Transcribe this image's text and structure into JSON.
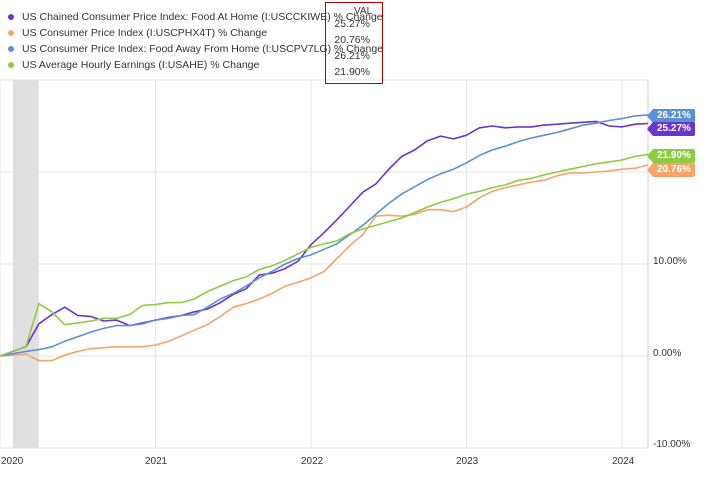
{
  "legend": {
    "header": "VAL",
    "items": [
      {
        "label": "US Chained Consumer Price Index: Food At Home (I:USCCKIWE) % Change",
        "value": "25.27%",
        "color": "#6a35c8"
      },
      {
        "label": "US Consumer Price Index (I:USCPHX4T) % Change",
        "value": "20.76%",
        "color": "#f7a46b"
      },
      {
        "label": "US Consumer Price Index: Food Away From Home (I:USCPV7LG) % Change",
        "value": "26.21%",
        "color": "#5b8fd6"
      },
      {
        "label": "US Average Hourly Earnings (I:USAHE) % Change",
        "value": "21.90%",
        "color": "#8ccc45"
      }
    ]
  },
  "chart_data": {
    "type": "line",
    "x_ticks": [
      "2020",
      "2021",
      "2022",
      "2023",
      "2024"
    ],
    "y_ticks": [
      "10.00%",
      "0.00%",
      "-10.00%"
    ],
    "ylim": [
      -10,
      30
    ],
    "grid": true,
    "highlight_band": [
      "2020-02",
      "2020-04"
    ],
    "end_labels": [
      "26.21%",
      "25.27%",
      "21.90%",
      "20.76%"
    ],
    "series": [
      {
        "name": "US Chained Consumer Price Index: Food At Home (I:USCCKIWE) % Change",
        "color": "#6a35c8",
        "x": [
          "2020-01",
          "2020-03",
          "2020-04",
          "2020-05",
          "2020-06",
          "2020-07",
          "2020-08",
          "2020-09",
          "2020-10",
          "2020-11",
          "2020-12",
          "2021-01",
          "2021-02",
          "2021-03",
          "2021-04",
          "2021-05",
          "2021-06",
          "2021-07",
          "2021-08",
          "2021-09",
          "2021-10",
          "2021-11",
          "2021-12",
          "2022-01",
          "2022-02",
          "2022-03",
          "2022-04",
          "2022-05",
          "2022-06",
          "2022-07",
          "2022-08",
          "2022-09",
          "2022-10",
          "2022-11",
          "2022-12",
          "2023-01",
          "2023-02",
          "2023-03",
          "2023-04",
          "2023-05",
          "2023-06",
          "2023-07",
          "2023-08",
          "2023-09",
          "2023-10",
          "2023-11",
          "2023-12",
          "2024-01",
          "2024-02",
          "2024-03"
        ],
        "y": [
          0.0,
          1.0,
          3.5,
          4.5,
          5.3,
          4.4,
          4.3,
          3.8,
          3.9,
          3.3,
          3.6,
          3.9,
          4.2,
          4.4,
          4.8,
          5.1,
          5.8,
          6.7,
          7.3,
          8.8,
          9.0,
          9.5,
          10.3,
          12.1,
          13.4,
          14.8,
          16.3,
          17.8,
          18.7,
          20.3,
          21.7,
          22.4,
          23.4,
          23.9,
          23.6,
          24.0,
          24.8,
          25.0,
          24.8,
          24.9,
          24.9,
          25.1,
          25.2,
          25.3,
          25.4,
          25.5,
          25.0,
          24.9,
          25.2,
          25.27
        ]
      },
      {
        "name": "US Consumer Price Index (I:USCPHX4T) % Change",
        "color": "#f7a46b",
        "x": [
          "2020-01",
          "2020-03",
          "2020-04",
          "2020-05",
          "2020-06",
          "2020-07",
          "2020-08",
          "2020-09",
          "2020-10",
          "2020-11",
          "2020-12",
          "2021-01",
          "2021-02",
          "2021-03",
          "2021-04",
          "2021-05",
          "2021-06",
          "2021-07",
          "2021-08",
          "2021-09",
          "2021-10",
          "2021-11",
          "2021-12",
          "2022-01",
          "2022-02",
          "2022-03",
          "2022-04",
          "2022-05",
          "2022-06",
          "2022-07",
          "2022-08",
          "2022-09",
          "2022-10",
          "2022-11",
          "2022-12",
          "2023-01",
          "2023-02",
          "2023-03",
          "2023-04",
          "2023-05",
          "2023-06",
          "2023-07",
          "2023-08",
          "2023-09",
          "2023-10",
          "2023-11",
          "2023-12",
          "2024-01",
          "2024-02",
          "2024-03"
        ],
        "y": [
          0.0,
          0.2,
          -0.5,
          -0.5,
          0.1,
          0.5,
          0.8,
          0.9,
          1.0,
          1.0,
          1.0,
          1.2,
          1.6,
          2.2,
          2.8,
          3.4,
          4.3,
          5.3,
          5.7,
          6.2,
          6.8,
          7.6,
          8.0,
          8.5,
          9.2,
          10.6,
          12.0,
          13.2,
          15.2,
          15.3,
          15.2,
          15.4,
          15.9,
          15.9,
          15.7,
          16.2,
          17.2,
          17.9,
          18.3,
          18.6,
          18.9,
          19.1,
          19.6,
          19.9,
          19.9,
          20.0,
          20.1,
          20.3,
          20.4,
          20.76
        ]
      },
      {
        "name": "US Consumer Price Index: Food Away From Home (I:USCPV7LG) % Change",
        "color": "#5b8fd6",
        "x": [
          "2020-01",
          "2020-03",
          "2020-04",
          "2020-05",
          "2020-06",
          "2020-07",
          "2020-08",
          "2020-09",
          "2020-10",
          "2020-11",
          "2020-12",
          "2021-01",
          "2021-02",
          "2021-03",
          "2021-04",
          "2021-05",
          "2021-06",
          "2021-07",
          "2021-08",
          "2021-09",
          "2021-10",
          "2021-11",
          "2021-12",
          "2022-01",
          "2022-02",
          "2022-03",
          "2022-04",
          "2022-05",
          "2022-06",
          "2022-07",
          "2022-08",
          "2022-09",
          "2022-10",
          "2022-11",
          "2022-12",
          "2023-01",
          "2023-02",
          "2023-03",
          "2023-04",
          "2023-05",
          "2023-06",
          "2023-07",
          "2023-08",
          "2023-09",
          "2023-10",
          "2023-11",
          "2023-12",
          "2024-01",
          "2024-02",
          "2024-03"
        ],
        "y": [
          0.0,
          0.5,
          0.7,
          1.0,
          1.6,
          2.1,
          2.6,
          3.0,
          3.3,
          3.3,
          3.5,
          3.9,
          4.1,
          4.4,
          4.5,
          5.3,
          6.2,
          6.8,
          7.6,
          8.5,
          9.2,
          10.0,
          10.6,
          11.0,
          11.6,
          12.2,
          13.2,
          14.2,
          15.4,
          16.6,
          17.6,
          18.4,
          19.2,
          19.8,
          20.3,
          21.0,
          21.8,
          22.4,
          22.8,
          23.3,
          23.7,
          24.0,
          24.3,
          24.7,
          25.1,
          25.3,
          25.6,
          25.8,
          26.1,
          26.21
        ]
      },
      {
        "name": "US Average Hourly Earnings (I:USAHE) % Change",
        "color": "#8ccc45",
        "x": [
          "2020-01",
          "2020-03",
          "2020-04",
          "2020-05",
          "2020-06",
          "2020-07",
          "2020-08",
          "2020-09",
          "2020-10",
          "2020-11",
          "2020-12",
          "2021-01",
          "2021-02",
          "2021-03",
          "2021-04",
          "2021-05",
          "2021-06",
          "2021-07",
          "2021-08",
          "2021-09",
          "2021-10",
          "2021-11",
          "2021-12",
          "2022-01",
          "2022-02",
          "2022-03",
          "2022-04",
          "2022-05",
          "2022-06",
          "2022-07",
          "2022-08",
          "2022-09",
          "2022-10",
          "2022-11",
          "2022-12",
          "2023-01",
          "2023-02",
          "2023-03",
          "2023-04",
          "2023-05",
          "2023-06",
          "2023-07",
          "2023-08",
          "2023-09",
          "2023-10",
          "2023-11",
          "2023-12",
          "2024-01",
          "2024-02",
          "2024-03"
        ],
        "y": [
          0.0,
          1.0,
          5.7,
          4.8,
          3.4,
          3.6,
          3.8,
          4.1,
          4.1,
          4.5,
          5.5,
          5.6,
          5.8,
          5.8,
          6.2,
          7.0,
          7.6,
          8.2,
          8.6,
          9.4,
          9.8,
          10.4,
          11.1,
          11.8,
          12.2,
          12.5,
          13.3,
          13.8,
          14.2,
          14.6,
          15.0,
          15.6,
          16.2,
          16.7,
          17.1,
          17.6,
          17.9,
          18.3,
          18.6,
          19.1,
          19.3,
          19.7,
          20.0,
          20.3,
          20.6,
          20.9,
          21.1,
          21.3,
          21.7,
          21.9
        ]
      }
    ]
  }
}
